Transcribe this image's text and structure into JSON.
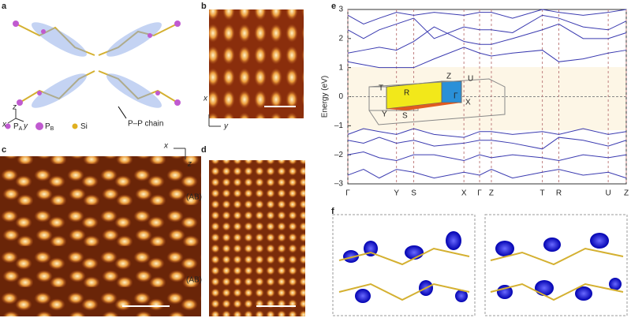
{
  "figure": {
    "panel_labels": [
      "a",
      "b",
      "c",
      "d",
      "e",
      "f"
    ],
    "panel_a": {
      "legend": [
        {
          "symbol": "P",
          "sub": "A"
        },
        {
          "symbol": "P",
          "sub": "B"
        },
        {
          "symbol": "Si"
        }
      ],
      "annotation": "P–P chain",
      "axes": [
        "z",
        "x",
        "y"
      ]
    },
    "panel_b": {
      "axes": [
        "x",
        "y"
      ]
    },
    "panel_c": {
      "axes": [
        "x",
        "z"
      ],
      "stacking": [
        "(AB)",
        "(AB)"
      ]
    },
    "panel_e_inset": {
      "labels": [
        "T",
        "R",
        "Z",
        "U",
        "Y",
        "S",
        "X",
        "Γ"
      ]
    }
  },
  "chart_data": {
    "type": "line",
    "ylabel": "Energy (eV)",
    "x": [
      0,
      20,
      40,
      62,
      84,
      110,
      148,
      168,
      183,
      210,
      248,
      269,
      300,
      332,
      355
    ],
    "xlim": [
      0,
      355
    ],
    "xticks": [
      {
        "value": 0,
        "label": "Γ"
      },
      {
        "value": 62,
        "label": "Y"
      },
      {
        "value": 84,
        "label": "S"
      },
      {
        "value": 148,
        "label": "X"
      },
      {
        "value": 168,
        "label": "Γ"
      },
      {
        "value": 183,
        "label": "Z"
      },
      {
        "value": 248,
        "label": "T"
      },
      {
        "value": 269,
        "label": "R"
      },
      {
        "value": 332,
        "label": "U"
      },
      {
        "value": 355,
        "label": "Z"
      }
    ],
    "ylim": [
      -3,
      3
    ],
    "yticks": [
      {
        "value": -3,
        "label": "–3"
      },
      {
        "value": -2,
        "label": "–2"
      },
      {
        "value": -1,
        "label": "–1"
      },
      0,
      1,
      2,
      3
    ],
    "series": [
      {
        "color": "#3a3ab0",
        "values": [
          1.2,
          1.1,
          1.0,
          1.0,
          1.0,
          1.3,
          1.7,
          1.5,
          1.4,
          1.5,
          1.6,
          1.2,
          1.3,
          1.5,
          1.6
        ]
      },
      {
        "color": "#3a3ab0",
        "values": [
          1.5,
          1.6,
          1.7,
          1.6,
          1.9,
          2.4,
          1.9,
          1.8,
          1.8,
          2.0,
          2.3,
          2.5,
          2.0,
          2.0,
          2.2
        ]
      },
      {
        "color": "#3a3ab0",
        "values": [
          2.3,
          2.0,
          2.3,
          2.5,
          2.7,
          2.0,
          2.4,
          2.3,
          2.3,
          2.2,
          2.8,
          2.7,
          2.4,
          2.3,
          2.6
        ]
      },
      {
        "color": "#3a3ab0",
        "values": [
          2.8,
          2.5,
          2.7,
          2.9,
          2.8,
          2.9,
          2.8,
          2.9,
          2.9,
          2.7,
          3.0,
          2.9,
          2.8,
          2.9,
          3.0
        ]
      },
      {
        "color": "#3a3ab0",
        "values": [
          -1.3,
          -1.1,
          -1.2,
          -1.3,
          -1.1,
          -1.3,
          -1.4,
          -1.2,
          -1.2,
          -1.3,
          -1.2,
          -1.3,
          -1.1,
          -1.3,
          -1.2
        ]
      },
      {
        "color": "#3a3ab0",
        "values": [
          -1.5,
          -1.6,
          -1.4,
          -1.6,
          -1.5,
          -1.7,
          -1.6,
          -1.5,
          -1.5,
          -1.6,
          -1.8,
          -1.4,
          -1.5,
          -1.7,
          -1.5
        ]
      },
      {
        "color": "#3a3ab0",
        "values": [
          -2.0,
          -1.9,
          -2.1,
          -2.2,
          -2.0,
          -2.0,
          -2.2,
          -2.0,
          -2.1,
          -2.0,
          -2.1,
          -2.2,
          -2.0,
          -2.1,
          -2.0
        ]
      },
      {
        "color": "#3a3ab0",
        "values": [
          -2.7,
          -2.5,
          -2.8,
          -2.5,
          -2.6,
          -2.8,
          -2.6,
          -2.7,
          -2.5,
          -2.8,
          -2.6,
          -2.5,
          -2.7,
          -2.6,
          -2.8
        ]
      }
    ]
  }
}
